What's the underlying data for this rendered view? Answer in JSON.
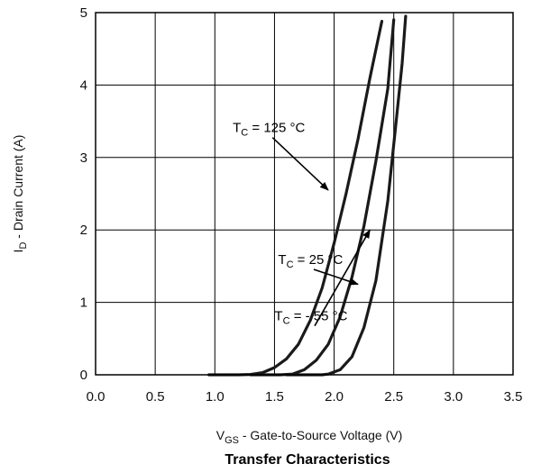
{
  "chart_data": {
    "type": "line",
    "title": "Transfer Characteristics",
    "xlabel": {
      "main": "V",
      "sub": "GS",
      "rest": " - Gate-to-Source Voltage (V)"
    },
    "ylabel": {
      "main": "I",
      "sub": "D",
      "rest": " - Drain Current (A)"
    },
    "xlim": [
      0.0,
      3.5
    ],
    "ylim": [
      0,
      5
    ],
    "grid": true,
    "x_ticks": [
      "0.0",
      "0.5",
      "1.0",
      "1.5",
      "2.0",
      "2.5",
      "3.0",
      "3.5"
    ],
    "y_ticks": [
      "0",
      "1",
      "2",
      "3",
      "4",
      "5"
    ],
    "series": [
      {
        "name": {
          "main": "T",
          "sub": "C",
          "rest": " = - 55 °C"
        },
        "points": [
          [
            0.95,
            0.0
          ],
          [
            1.2,
            0.0
          ],
          [
            1.3,
            0.005
          ],
          [
            1.4,
            0.03
          ],
          [
            1.5,
            0.1
          ],
          [
            1.6,
            0.22
          ],
          [
            1.7,
            0.42
          ],
          [
            1.8,
            0.75
          ],
          [
            1.9,
            1.2
          ],
          [
            2.0,
            1.82
          ],
          [
            2.1,
            2.5
          ],
          [
            2.2,
            3.25
          ],
          [
            2.3,
            4.1
          ],
          [
            2.4,
            4.88
          ]
        ]
      },
      {
        "name": {
          "main": "T",
          "sub": "C",
          "rest": " = 25 °C"
        },
        "points": [
          [
            1.3,
            0.0
          ],
          [
            1.55,
            0.0
          ],
          [
            1.65,
            0.01
          ],
          [
            1.75,
            0.07
          ],
          [
            1.85,
            0.2
          ],
          [
            1.95,
            0.42
          ],
          [
            2.05,
            0.8
          ],
          [
            2.15,
            1.35
          ],
          [
            2.25,
            2.05
          ],
          [
            2.35,
            2.95
          ],
          [
            2.45,
            3.95
          ],
          [
            2.5,
            4.9
          ]
        ]
      },
      {
        "name": {
          "main": "T",
          "sub": "C",
          "rest": " = 125 °C"
        },
        "points": [
          [
            1.6,
            0.0
          ],
          [
            1.9,
            0.0
          ],
          [
            1.95,
            0.01
          ],
          [
            2.05,
            0.07
          ],
          [
            2.15,
            0.25
          ],
          [
            2.25,
            0.65
          ],
          [
            2.35,
            1.3
          ],
          [
            2.45,
            2.4
          ],
          [
            2.52,
            3.5
          ],
          [
            2.57,
            4.3
          ],
          [
            2.6,
            4.95
          ]
        ]
      }
    ],
    "annotations": [
      {
        "series": 0,
        "text_at": [
          1.5,
          0.75
        ],
        "arrow_to": [
          2.3,
          2.0
        ]
      },
      {
        "series": 1,
        "text_at": [
          1.53,
          1.53
        ],
        "arrow_to": [
          2.2,
          1.25
        ]
      },
      {
        "series": 2,
        "text_at": [
          1.15,
          3.35
        ],
        "arrow_to": [
          1.95,
          2.55
        ]
      }
    ],
    "colors": {
      "line": "#1a1a1a",
      "grid": "#000000",
      "text": "#111111"
    }
  }
}
